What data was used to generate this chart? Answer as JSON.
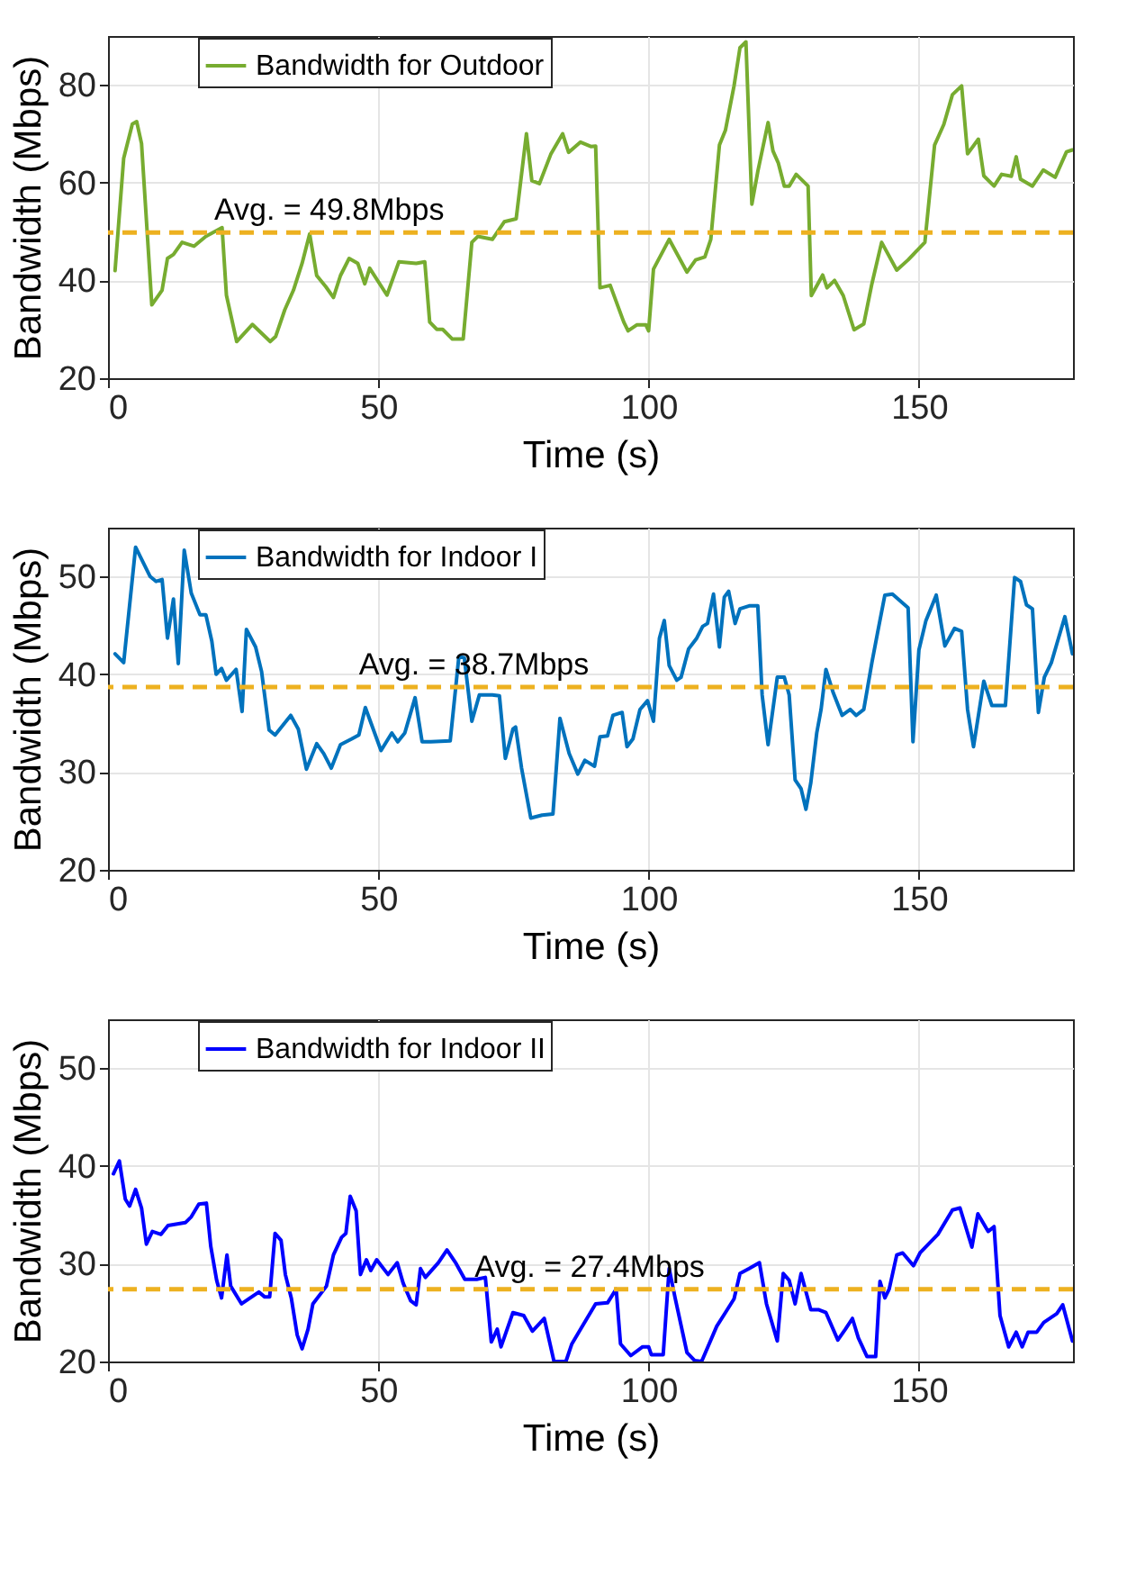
{
  "chart_data": [
    {
      "type": "line",
      "xlabel": "Time (s)",
      "ylabel": "Bandwidth (Mbps)",
      "xlim": [
        0,
        178.5
      ],
      "xticks": [
        0,
        50,
        100,
        150
      ],
      "ylim": [
        20,
        90
      ],
      "yticks": [
        20,
        40,
        60,
        80
      ],
      "grid": true,
      "legend": "top left",
      "ref_lines": [
        {
          "axis": "y",
          "value": 49.8,
          "label": "Avg. = 49.8Mbps",
          "color": "#edb120",
          "line_style": "dashed"
        }
      ],
      "series": [
        {
          "name": "Bandwidth for Outdoor",
          "color": "#77ac30",
          "x": [
            1.3,
            2.9,
            4.5,
            5.3,
            6.2,
            8.1,
            10,
            11,
            12.1,
            13.7,
            15.9,
            18.1,
            21.1,
            21.9,
            23.8,
            26.7,
            30,
            31,
            32.7,
            34.3,
            35.9,
            37.3,
            38.6,
            40.3,
            41.7,
            43,
            44.6,
            46.2,
            47.5,
            48.4,
            51.6,
            53.8,
            57,
            58.6,
            59.5,
            60.8,
            61.9,
            63.7,
            65.7,
            67.3,
            68.4,
            71.1,
            73.3,
            75.5,
            77.4,
            78.4,
            79.8,
            81.9,
            84.1,
            85.2,
            87.4,
            89.3,
            90.2,
            91,
            92.9,
            95.4,
            96.2,
            97.8,
            99.5,
            100,
            100.9,
            103.8,
            107.1,
            108.7,
            110.4,
            111.5,
            113.1,
            114.2,
            115.8,
            116.9,
            118,
            119.1,
            120.2,
            122.1,
            123,
            124,
            125.1,
            126,
            127.3,
            129.5,
            130.1,
            132.2,
            133,
            134.4,
            136,
            138,
            139.8,
            141.3,
            143.1,
            145.9,
            148,
            151.1,
            152.9,
            154.6,
            156.2,
            157.9,
            159,
            161,
            162,
            163.9,
            165.3,
            167.1,
            168,
            168.8,
            171,
            173,
            175.2,
            177.3,
            178.4
          ],
          "values": [
            42,
            65,
            72,
            72.5,
            68,
            35,
            38,
            44.5,
            45.3,
            47.8,
            47,
            49,
            50.8,
            37,
            27.5,
            31,
            27.5,
            28.5,
            34,
            38,
            43.5,
            49.5,
            41,
            38.7,
            36.5,
            41,
            44.5,
            43.5,
            39.3,
            42.5,
            37,
            43.8,
            43.5,
            43.8,
            31.5,
            30,
            30,
            28,
            28,
            47.8,
            49,
            48.4,
            52,
            52.6,
            70,
            60.4,
            59.8,
            65.8,
            70,
            66.2,
            68.3,
            67.4,
            67.5,
            38.5,
            39,
            31.5,
            29.7,
            30.9,
            30.9,
            29.7,
            42.3,
            48.4,
            41.7,
            44.2,
            44.8,
            48.4,
            67.7,
            70.7,
            79.8,
            87.6,
            88.8,
            55.6,
            62.3,
            72.3,
            66.5,
            64,
            59.3,
            59.3,
            61.7,
            59.3,
            36.9,
            41.1,
            38.5,
            40,
            36.9,
            29.9,
            31.1,
            39.3,
            47.8,
            42.1,
            44.2,
            47.8,
            67.7,
            71.9,
            78,
            79.8,
            65.9,
            68.9,
            61.4,
            59.3,
            61.7,
            61.3,
            65.3,
            60.7,
            59.3,
            62.6,
            61.1,
            66.3,
            66.7
          ]
        }
      ]
    },
    {
      "type": "line",
      "xlabel": "Time (s)",
      "ylabel": "Bandwidth (Mbps)",
      "xlim": [
        0,
        178.5
      ],
      "xticks": [
        0,
        50,
        100,
        150
      ],
      "ylim": [
        20,
        55
      ],
      "yticks": [
        20,
        30,
        40,
        50
      ],
      "grid": true,
      "legend": "top left",
      "ref_lines": [
        {
          "axis": "y",
          "value": 38.7,
          "label": "Avg. = 38.7Mbps",
          "color": "#edb120",
          "line_style": "dashed"
        }
      ],
      "series": [
        {
          "name": "Bandwidth for Indoor I",
          "color": "#0072bd",
          "x": [
            1.3,
            2.9,
            5.1,
            7.8,
            8.9,
            10,
            11,
            12.1,
            13,
            14.1,
            15.4,
            17,
            18.1,
            19.2,
            20,
            21,
            21.9,
            23.7,
            24.8,
            25.6,
            27.3,
            28.4,
            29.8,
            30.9,
            33.8,
            35.2,
            36.7,
            38.6,
            39.9,
            41.3,
            43,
            45.1,
            46.4,
            47.6,
            50.5,
            52.5,
            53.6,
            54.9,
            56.8,
            58.1,
            59.7,
            63.3,
            64.9,
            65.9,
            67.3,
            68.7,
            71.1,
            72.4,
            73.5,
            74.9,
            75.4,
            76.5,
            78.2,
            80.3,
            82.3,
            83.6,
            85.3,
            86.9,
            88.2,
            90,
            91,
            92.4,
            93.4,
            95.1,
            96,
            97.1,
            98.4,
            99.8,
            100.9,
            102,
            102.9,
            103.8,
            105.2,
            106,
            107.4,
            108.9,
            110,
            110.9,
            112,
            113.1,
            114,
            114.8,
            116,
            116.9,
            118.6,
            120.2,
            121,
            122.1,
            123.8,
            125.1,
            126,
            127.1,
            128.2,
            129.1,
            130,
            131.1,
            131.9,
            132.8,
            134.1,
            135.8,
            137.3,
            138.4,
            139.8,
            141.3,
            142.4,
            143.7,
            145.1,
            148,
            148.9,
            150,
            151.3,
            153.2,
            154.8,
            156.6,
            157.9,
            159,
            160.1,
            162,
            163.5,
            164.4,
            166,
            167.7,
            168.8,
            169.9,
            171,
            172.1,
            173.2,
            174.5,
            175.5,
            177,
            178.4
          ],
          "values": [
            42.1,
            41.2,
            53,
            50,
            49.5,
            49.7,
            43.7,
            47.7,
            41.1,
            52.7,
            48.3,
            46.1,
            46.1,
            43.4,
            40,
            40.6,
            39.4,
            40.5,
            36.2,
            44.6,
            42.8,
            40.3,
            34.3,
            33.8,
            35.8,
            34.4,
            30.3,
            32.9,
            31.9,
            30.4,
            32.8,
            33.4,
            33.8,
            36.6,
            32.2,
            34,
            33.1,
            34,
            37.6,
            33.1,
            33.1,
            33.2,
            41.8,
            41.7,
            35.2,
            37.9,
            37.9,
            37.8,
            31.4,
            34.4,
            34.6,
            30.4,
            25.3,
            25.6,
            25.7,
            35.5,
            31.9,
            29.8,
            31.2,
            30.6,
            33.6,
            33.7,
            35.8,
            36.1,
            32.6,
            33.4,
            36.4,
            37.3,
            35.2,
            43.7,
            45.5,
            40.9,
            39.4,
            39.7,
            42.6,
            43.7,
            44.9,
            45.2,
            48.2,
            42.8,
            47.9,
            48.5,
            45.2,
            46.7,
            47,
            47,
            37.9,
            32.8,
            39.7,
            39.7,
            37.9,
            29.2,
            28.3,
            26.2,
            28.9,
            34,
            36.4,
            40.5,
            38.2,
            35.8,
            36.4,
            35.8,
            36.4,
            41.2,
            44.4,
            48.1,
            48.2,
            46.8,
            33.1,
            42.5,
            45.5,
            48.1,
            42.9,
            44.7,
            44.4,
            36.4,
            32.6,
            39.3,
            36.8,
            36.8,
            36.8,
            49.9,
            49.5,
            47.1,
            46.7,
            36.1,
            39.7,
            41.2,
            43.1,
            45.9,
            42.1
          ]
        }
      ]
    },
    {
      "type": "line",
      "xlabel": "Time (s)",
      "ylabel": "Bandwidth (Mbps)",
      "xlim": [
        0,
        178.5
      ],
      "xticks": [
        0,
        50,
        100,
        150
      ],
      "ylim": [
        20,
        55
      ],
      "yticks": [
        20,
        30,
        40,
        50
      ],
      "grid": true,
      "legend": "top left",
      "ref_lines": [
        {
          "axis": "y",
          "value": 27.4,
          "label": "Avg. = 27.4Mbps",
          "color": "#edb120",
          "line_style": "dashed"
        }
      ],
      "series": [
        {
          "name": "Bandwidth for Indoor II",
          "color": "#0000ff",
          "x": [
            1,
            2.1,
            3.2,
            4,
            5.1,
            6.2,
            7.1,
            8.2,
            9.8,
            11.1,
            14.3,
            15.4,
            16.8,
            18.2,
            19,
            20.1,
            21,
            22,
            22.7,
            24.7,
            26.3,
            27.9,
            29,
            29.9,
            30.9,
            32,
            32.8,
            33.9,
            35,
            35.9,
            37,
            37.9,
            40.4,
            41.7,
            43.2,
            44,
            44.8,
            45.9,
            46.7,
            47.8,
            48.6,
            49.7,
            51.8,
            53.5,
            54.6,
            56,
            57,
            57.8,
            58.7,
            61.1,
            62.7,
            64.3,
            66,
            68.2,
            69.8,
            70.9,
            72,
            72.7,
            74.9,
            76.9,
            78.5,
            80.7,
            82.5,
            84.7,
            85.8,
            87.4,
            90.2,
            92.4,
            94,
            94.8,
            96.7,
            98.9,
            100,
            100.5,
            102.7,
            103.8,
            104.9,
            107.1,
            108.5,
            109.8,
            112.6,
            114.2,
            115.8,
            116.9,
            118.6,
            120.5,
            121.8,
            123.8,
            124.9,
            126,
            127.1,
            128.2,
            130,
            131.4,
            132.8,
            135,
            136.4,
            137.7,
            138.8,
            140.4,
            142,
            142.8,
            143.7,
            144.5,
            145.9,
            147,
            149,
            150.2,
            153.5,
            156.2,
            157.6,
            159.8,
            160.9,
            162.8,
            163.9,
            165,
            166.6,
            168,
            169.1,
            170.2,
            171.8,
            173.1,
            175.5,
            176.6,
            178.4
          ],
          "values": [
            39.2,
            40.5,
            36.6,
            35.9,
            37.6,
            35.7,
            32,
            33.3,
            33,
            33.9,
            34.2,
            34.8,
            36.1,
            36.2,
            31.8,
            28.3,
            26.5,
            30.9,
            27.7,
            25.9,
            26.5,
            27.1,
            26.6,
            26.6,
            33.1,
            32.4,
            28.9,
            26.5,
            22.7,
            21.3,
            23.3,
            25.9,
            27.7,
            30.9,
            32.7,
            33.1,
            36.9,
            35.4,
            28.9,
            30.4,
            29.3,
            30.4,
            28.9,
            30.1,
            28,
            26.2,
            25.8,
            29.5,
            28.6,
            30.1,
            31.4,
            30.1,
            28.4,
            28.4,
            28.6,
            22,
            23.3,
            21.5,
            25,
            24.7,
            23.1,
            24.4,
            20,
            20,
            21.8,
            23.3,
            25.9,
            26,
            27.4,
            21.8,
            20.6,
            21.5,
            21.5,
            20.7,
            20.7,
            29.5,
            26.5,
            20.9,
            20.1,
            20,
            23.6,
            25,
            26.4,
            29,
            29.5,
            30.1,
            25.9,
            22.1,
            29,
            28.3,
            25.9,
            29,
            25.3,
            25.3,
            25,
            22.2,
            23.3,
            24.4,
            22.4,
            20.5,
            20.5,
            28.2,
            26.5,
            27.4,
            30.9,
            31.1,
            29.8,
            31.1,
            33,
            35.5,
            35.7,
            31.7,
            35.1,
            33.3,
            33.8,
            24.7,
            21.5,
            23,
            21.5,
            23,
            23,
            24,
            24.9,
            25.8,
            22.1
          ]
        }
      ]
    }
  ]
}
